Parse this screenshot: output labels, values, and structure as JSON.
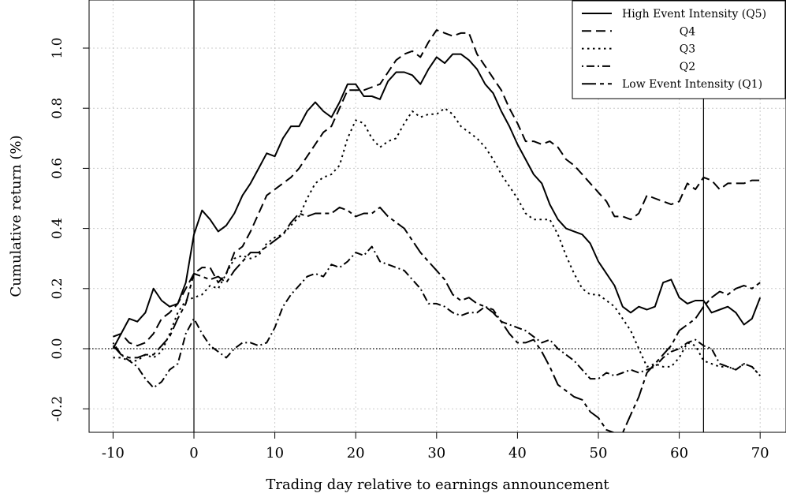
{
  "chart_data": {
    "type": "line",
    "xlabel": "Trading day relative to earnings announcement",
    "ylabel": "Cumulative return (%)",
    "xlim": [
      -11.5,
      73
    ],
    "ylim": [
      -0.27,
      1.15
    ],
    "x_ticks": [
      -10,
      0,
      10,
      20,
      30,
      40,
      50,
      60,
      70
    ],
    "x_tick_labels": [
      "-10",
      "0",
      "10",
      "20",
      "30",
      "40",
      "50",
      "60",
      "70"
    ],
    "y_ticks": [
      -0.2,
      0.0,
      0.2,
      0.4,
      0.6,
      0.8,
      1.0
    ],
    "y_tick_labels": [
      "-0.2",
      "0.0",
      "0.2",
      "0.4",
      "0.6",
      "0.8",
      "1.0"
    ],
    "grid": true,
    "legend_position": "top-right",
    "vertical_lines": [
      0,
      63
    ],
    "reference_line_y": 0.0,
    "series": [
      {
        "name": "High Event Intensity (Q5)",
        "style": "solid",
        "x": [
          -10,
          -9,
          -8,
          -7,
          -6,
          -5,
          -4,
          -3,
          -2,
          -1,
          0,
          1,
          2,
          3,
          4,
          5,
          6,
          7,
          8,
          9,
          10,
          11,
          12,
          13,
          14,
          15,
          16,
          17,
          18,
          19,
          20,
          21,
          22,
          23,
          24,
          25,
          26,
          27,
          28,
          29,
          30,
          31,
          32,
          33,
          34,
          35,
          36,
          37,
          38,
          39,
          40,
          41,
          42,
          43,
          44,
          45,
          46,
          47,
          48,
          49,
          50,
          51,
          52,
          53,
          54,
          55,
          56,
          57,
          58,
          59,
          60,
          61,
          62,
          63,
          64,
          65,
          66,
          67,
          68,
          69,
          70
        ],
        "y": [
          0.0,
          0.05,
          0.1,
          0.09,
          0.12,
          0.2,
          0.16,
          0.14,
          0.15,
          0.22,
          0.38,
          0.46,
          0.43,
          0.39,
          0.41,
          0.45,
          0.51,
          0.55,
          0.6,
          0.65,
          0.64,
          0.7,
          0.74,
          0.74,
          0.79,
          0.82,
          0.79,
          0.77,
          0.82,
          0.88,
          0.88,
          0.84,
          0.84,
          0.83,
          0.89,
          0.92,
          0.92,
          0.91,
          0.88,
          0.93,
          0.97,
          0.95,
          0.98,
          0.98,
          0.96,
          0.93,
          0.88,
          0.85,
          0.79,
          0.74,
          0.68,
          0.63,
          0.58,
          0.55,
          0.48,
          0.43,
          0.4,
          0.39,
          0.38,
          0.35,
          0.29,
          0.25,
          0.21,
          0.14,
          0.12,
          0.14,
          0.13,
          0.14,
          0.22,
          0.23,
          0.17,
          0.15,
          0.16,
          0.16,
          0.12,
          0.13,
          0.14,
          0.12,
          0.08,
          0.1,
          0.17
        ]
      },
      {
        "name": "Q4",
        "style": "dashed",
        "x": [
          -10,
          -9,
          -8,
          -7,
          -6,
          -5,
          -4,
          -3,
          -2,
          -1,
          0,
          1,
          2,
          3,
          4,
          5,
          6,
          7,
          8,
          9,
          10,
          11,
          12,
          13,
          14,
          15,
          16,
          17,
          18,
          19,
          20,
          21,
          22,
          23,
          24,
          25,
          26,
          27,
          28,
          29,
          30,
          31,
          32,
          33,
          34,
          35,
          36,
          37,
          38,
          39,
          40,
          41,
          42,
          43,
          44,
          45,
          46,
          47,
          48,
          49,
          50,
          51,
          52,
          53,
          54,
          55,
          56,
          57,
          58,
          59,
          60,
          61,
          62,
          63,
          64,
          65,
          66,
          67,
          68,
          69,
          70
        ],
        "y": [
          0.04,
          0.05,
          0.02,
          0.01,
          0.02,
          0.05,
          0.1,
          0.12,
          0.15,
          0.2,
          0.25,
          0.27,
          0.27,
          0.22,
          0.25,
          0.32,
          0.34,
          0.39,
          0.45,
          0.51,
          0.53,
          0.55,
          0.57,
          0.6,
          0.64,
          0.68,
          0.72,
          0.74,
          0.8,
          0.86,
          0.86,
          0.86,
          0.87,
          0.88,
          0.92,
          0.96,
          0.98,
          0.99,
          0.97,
          1.02,
          1.06,
          1.05,
          1.04,
          1.05,
          1.05,
          0.98,
          0.94,
          0.9,
          0.86,
          0.8,
          0.75,
          0.69,
          0.69,
          0.68,
          0.69,
          0.67,
          0.63,
          0.61,
          0.58,
          0.55,
          0.52,
          0.49,
          0.44,
          0.44,
          0.43,
          0.45,
          0.51,
          0.5,
          0.49,
          0.48,
          0.49,
          0.55,
          0.53,
          0.57,
          0.56,
          0.53,
          0.55,
          0.55,
          0.55,
          0.56,
          0.56
        ]
      },
      {
        "name": "Q3",
        "style": "dotted",
        "x": [
          -10,
          -9,
          -8,
          -7,
          -6,
          -5,
          -4,
          -3,
          -2,
          -1,
          0,
          1,
          2,
          3,
          4,
          5,
          6,
          7,
          8,
          9,
          10,
          11,
          12,
          13,
          14,
          15,
          16,
          17,
          18,
          19,
          20,
          21,
          22,
          23,
          24,
          25,
          26,
          27,
          28,
          29,
          30,
          31,
          32,
          33,
          34,
          35,
          36,
          37,
          38,
          39,
          40,
          41,
          42,
          43,
          44,
          45,
          46,
          47,
          48,
          49,
          50,
          51,
          52,
          53,
          54,
          55,
          56,
          57,
          58,
          59,
          60,
          61,
          62,
          63,
          64,
          65,
          66,
          67,
          68,
          69,
          70
        ],
        "y": [
          -0.03,
          -0.03,
          -0.04,
          -0.04,
          -0.02,
          -0.03,
          -0.01,
          0.05,
          0.12,
          0.16,
          0.17,
          0.18,
          0.21,
          0.2,
          0.25,
          0.3,
          0.31,
          0.3,
          0.31,
          0.35,
          0.37,
          0.38,
          0.41,
          0.44,
          0.5,
          0.55,
          0.57,
          0.58,
          0.61,
          0.7,
          0.76,
          0.75,
          0.7,
          0.67,
          0.69,
          0.7,
          0.75,
          0.79,
          0.77,
          0.78,
          0.78,
          0.8,
          0.78,
          0.74,
          0.72,
          0.7,
          0.67,
          0.63,
          0.58,
          0.54,
          0.5,
          0.45,
          0.43,
          0.43,
          0.43,
          0.38,
          0.31,
          0.25,
          0.2,
          0.18,
          0.18,
          0.16,
          0.14,
          0.1,
          0.06,
          0.0,
          -0.06,
          -0.05,
          -0.06,
          -0.06,
          -0.03,
          0.02,
          0.01,
          -0.04,
          -0.05,
          -0.06,
          -0.06,
          -0.07,
          -0.05,
          -0.06,
          -0.09
        ]
      },
      {
        "name": "Q2",
        "style": "dotdash",
        "x": [
          -10,
          -9,
          -8,
          -7,
          -6,
          -5,
          -4,
          -3,
          -2,
          -1,
          0,
          1,
          2,
          3,
          4,
          5,
          6,
          7,
          8,
          9,
          10,
          11,
          12,
          13,
          14,
          15,
          16,
          17,
          18,
          19,
          20,
          21,
          22,
          23,
          24,
          25,
          26,
          27,
          28,
          29,
          30,
          31,
          32,
          33,
          34,
          35,
          36,
          37,
          38,
          39,
          40,
          41,
          42,
          43,
          44,
          45,
          46,
          47,
          48,
          49,
          50,
          51,
          52,
          53,
          54,
          55,
          56,
          57,
          58,
          59,
          60,
          61,
          62,
          63,
          64,
          65,
          66,
          67,
          68,
          69,
          70
        ],
        "y": [
          0.02,
          -0.02,
          -0.04,
          -0.06,
          -0.1,
          -0.13,
          -0.11,
          -0.07,
          -0.05,
          0.05,
          0.1,
          0.05,
          0.01,
          -0.01,
          -0.03,
          0.0,
          0.02,
          0.02,
          0.01,
          0.02,
          0.07,
          0.14,
          0.18,
          0.21,
          0.24,
          0.25,
          0.24,
          0.28,
          0.27,
          0.29,
          0.32,
          0.31,
          0.34,
          0.29,
          0.28,
          0.27,
          0.26,
          0.23,
          0.2,
          0.15,
          0.15,
          0.14,
          0.12,
          0.11,
          0.12,
          0.12,
          0.14,
          0.13,
          0.09,
          0.08,
          0.07,
          0.06,
          0.04,
          0.02,
          0.03,
          0.0,
          -0.02,
          -0.04,
          -0.07,
          -0.1,
          -0.1,
          -0.08,
          -0.09,
          -0.08,
          -0.07,
          -0.08,
          -0.07,
          -0.06,
          -0.03,
          -0.01,
          0.0,
          0.02,
          0.03,
          0.01,
          0.0,
          -0.05,
          -0.06,
          -0.07,
          -0.05,
          -0.06,
          -0.09
        ]
      },
      {
        "name": "Low Event Intensity (Q1)",
        "style": "longdash",
        "x": [
          -10,
          -9,
          -8,
          -7,
          -6,
          -5,
          -4,
          -3,
          -2,
          -1,
          0,
          1,
          2,
          3,
          4,
          5,
          6,
          7,
          8,
          9,
          10,
          11,
          12,
          13,
          14,
          15,
          16,
          17,
          18,
          19,
          20,
          21,
          22,
          23,
          24,
          25,
          26,
          27,
          28,
          29,
          30,
          31,
          32,
          33,
          34,
          35,
          36,
          37,
          38,
          39,
          40,
          41,
          42,
          43,
          44,
          45,
          46,
          47,
          48,
          49,
          50,
          51,
          52,
          53,
          54,
          55,
          56,
          57,
          58,
          59,
          60,
          61,
          62,
          63,
          64,
          65,
          66,
          67,
          68,
          69,
          70
        ],
        "y": [
          0.01,
          -0.02,
          -0.03,
          -0.03,
          -0.02,
          -0.02,
          0.01,
          0.04,
          0.1,
          0.15,
          0.25,
          0.24,
          0.23,
          0.24,
          0.22,
          0.26,
          0.29,
          0.32,
          0.32,
          0.34,
          0.36,
          0.38,
          0.42,
          0.45,
          0.44,
          0.45,
          0.45,
          0.45,
          0.47,
          0.46,
          0.44,
          0.45,
          0.45,
          0.47,
          0.44,
          0.42,
          0.4,
          0.36,
          0.32,
          0.29,
          0.26,
          0.23,
          0.18,
          0.16,
          0.17,
          0.15,
          0.14,
          0.12,
          0.09,
          0.05,
          0.02,
          0.02,
          0.03,
          -0.01,
          -0.06,
          -0.12,
          -0.14,
          -0.16,
          -0.17,
          -0.21,
          -0.23,
          -0.27,
          -0.28,
          -0.28,
          -0.22,
          -0.16,
          -0.08,
          -0.05,
          -0.02,
          0.01,
          0.06,
          0.08,
          0.1,
          0.14,
          0.17,
          0.19,
          0.18,
          0.2,
          0.21,
          0.2,
          0.22
        ]
      }
    ]
  }
}
